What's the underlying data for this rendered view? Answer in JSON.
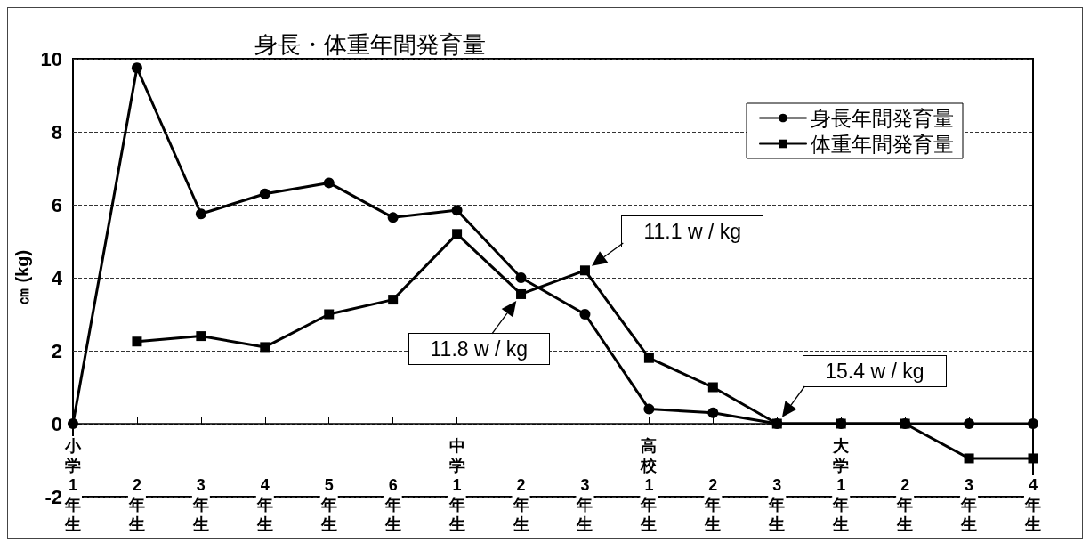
{
  "chart_data": {
    "type": "line",
    "title": "身長・体重年間発育量",
    "ylabel": "㎝ (kg)",
    "categories": [
      "小学1年生",
      "2年生",
      "3年生",
      "4年生",
      "5年生",
      "6年生",
      "中学1年生",
      "2年生",
      "3年生",
      "高校1年生",
      "2年生",
      "3年生",
      "大学1年生",
      "2年生",
      "3年生",
      "4年生"
    ],
    "series": [
      {
        "name": "身長年間発育量",
        "color": "#000000",
        "marker": "circle",
        "values": [
          0,
          9.75,
          5.75,
          6.3,
          6.6,
          5.65,
          5.85,
          4.0,
          3.0,
          0.4,
          0.3,
          0,
          0,
          0,
          0,
          0
        ]
      },
      {
        "name": "体重年間発育量",
        "color": "#000000",
        "marker": "square",
        "values": [
          null,
          2.25,
          2.4,
          2.1,
          3.0,
          3.4,
          5.2,
          3.55,
          4.2,
          1.8,
          1.0,
          0,
          0,
          0,
          -0.95,
          -0.95
        ]
      }
    ],
    "ylim": [
      -2,
      10
    ],
    "yticks": [
      -2,
      0,
      2,
      4,
      6,
      8,
      10
    ],
    "grid": "y",
    "legend": "top right",
    "annotations": [
      "11.1 w / kg",
      "11.8 w / kg",
      "15.4 w / kg"
    ]
  }
}
